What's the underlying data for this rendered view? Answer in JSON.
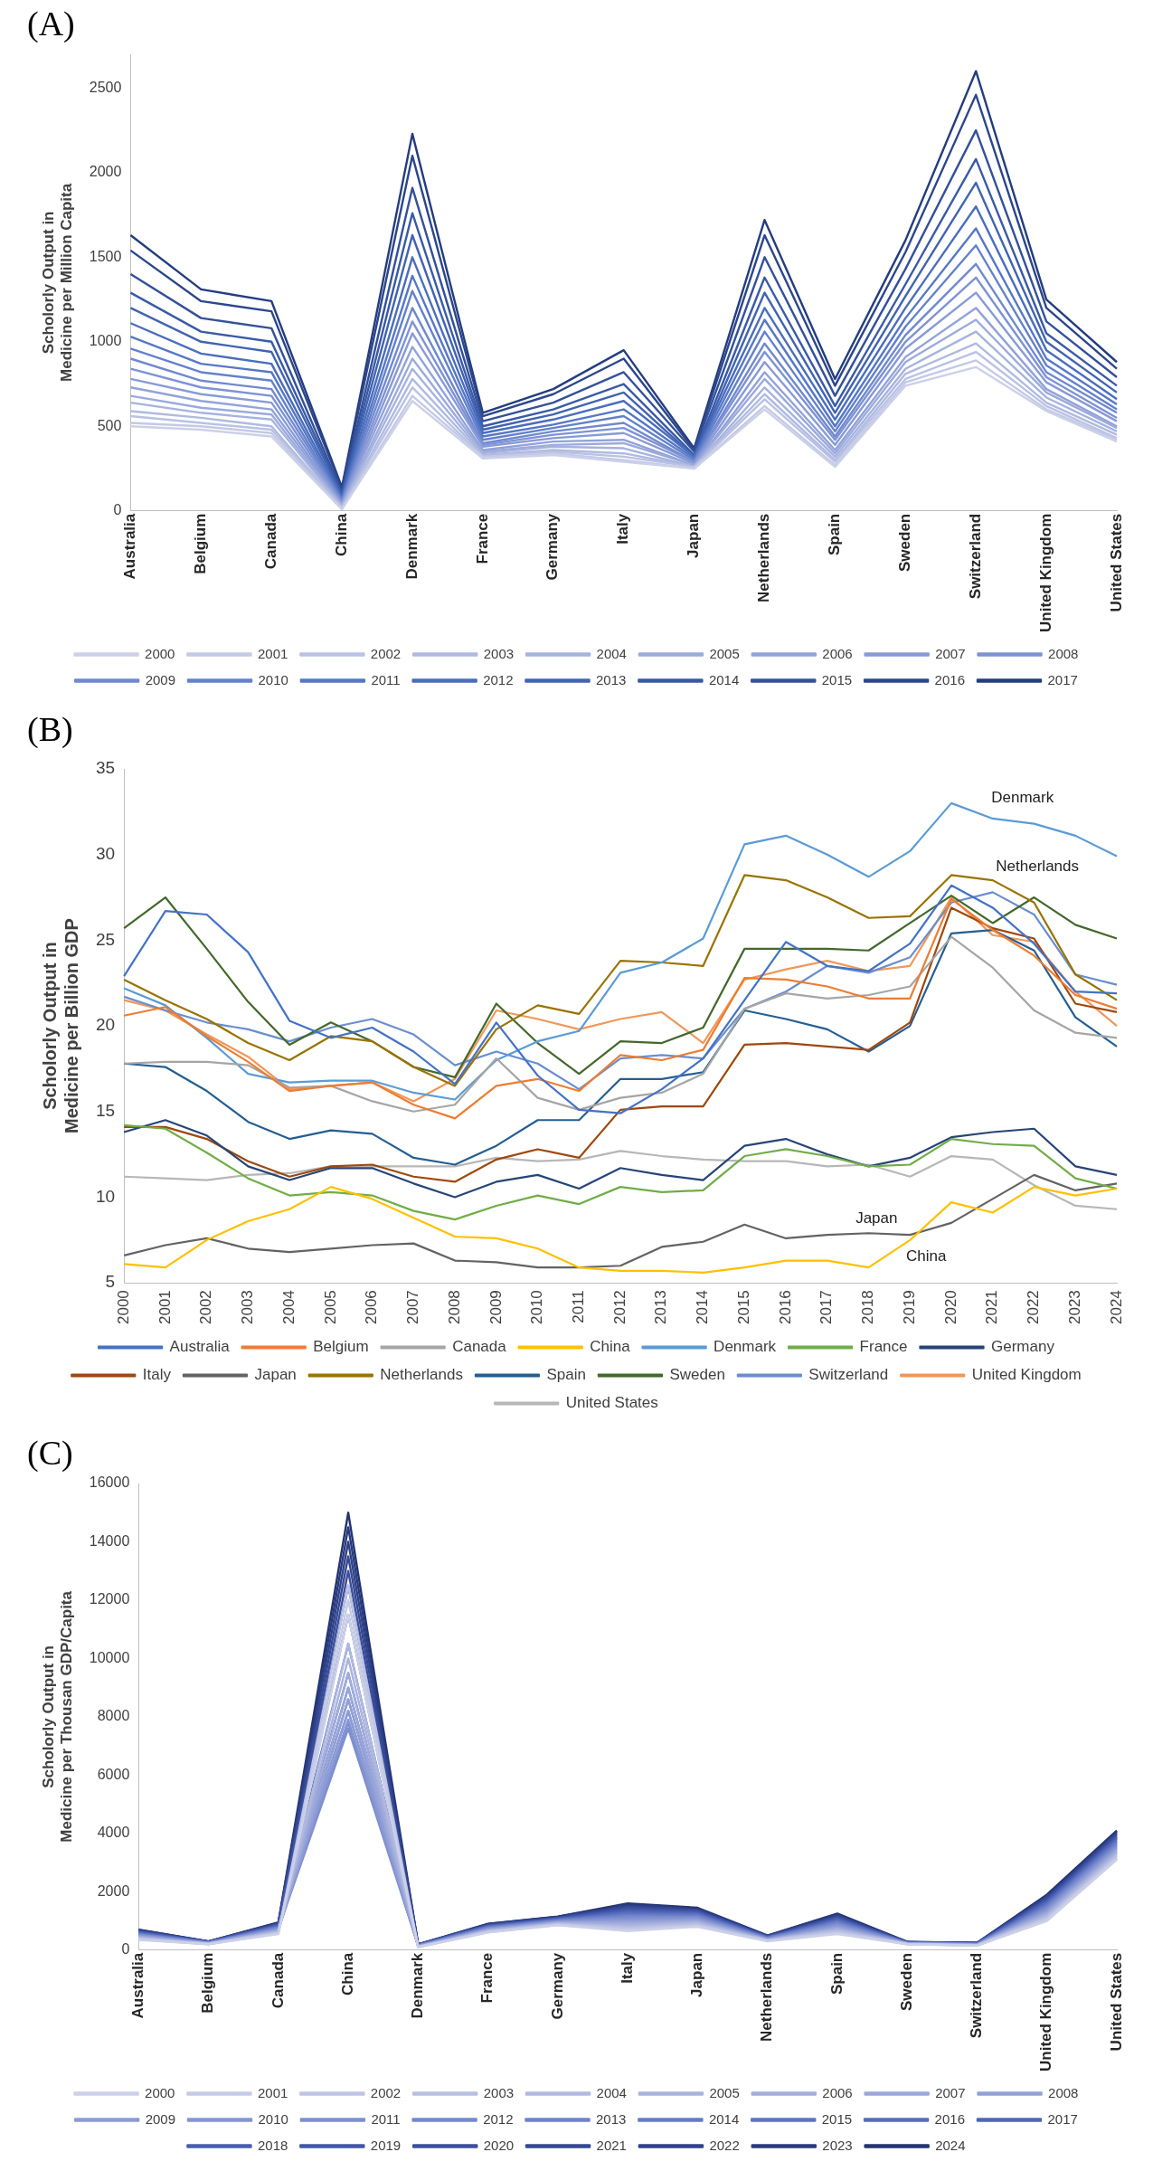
{
  "chart_data": [
    {
      "type": "line",
      "title": "(A)",
      "ylabel": "Scholorly Output in Medicine per Million Capita",
      "categories": [
        "Australia",
        "Belgium",
        "Canada",
        "China",
        "Denmark",
        "France",
        "Germany",
        "Italy",
        "Japan",
        "Netherlands",
        "Spain",
        "Sweden",
        "Switzerland",
        "United Kingdom",
        "United States"
      ],
      "ylim": [
        0,
        2700
      ],
      "yticks": [
        0,
        500,
        1000,
        1500,
        2000,
        2500
      ],
      "grid": false,
      "legend": "bottom",
      "marker": "none",
      "series": [
        {
          "name": "2000",
          "color": "#ccd0e8",
          "values": [
            500,
            480,
            440,
            10,
            650,
            310,
            330,
            290,
            250,
            600,
            260,
            740,
            850,
            590,
            410
          ]
        },
        {
          "name": "2001",
          "color": "#c3c9e6",
          "values": [
            520,
            500,
            460,
            10,
            680,
            320,
            340,
            300,
            250,
            620,
            270,
            760,
            890,
            600,
            420
          ]
        },
        {
          "name": "2002",
          "color": "#b9c2e4",
          "values": [
            560,
            520,
            480,
            20,
            730,
            320,
            350,
            320,
            260,
            660,
            290,
            780,
            940,
            620,
            430
          ]
        },
        {
          "name": "2003",
          "color": "#afbae2",
          "values": [
            590,
            550,
            500,
            20,
            780,
            330,
            360,
            340,
            260,
            690,
            300,
            810,
            990,
            640,
            450
          ]
        },
        {
          "name": "2004",
          "color": "#a6b3df",
          "values": [
            640,
            580,
            540,
            30,
            840,
            340,
            380,
            370,
            260,
            730,
            320,
            840,
            1060,
            670,
            470
          ]
        },
        {
          "name": "2005",
          "color": "#9caadc",
          "values": [
            680,
            610,
            570,
            30,
            900,
            350,
            390,
            400,
            270,
            780,
            340,
            880,
            1130,
            700,
            490
          ]
        },
        {
          "name": "2006",
          "color": "#92a2da",
          "values": [
            730,
            650,
            600,
            40,
            970,
            360,
            410,
            420,
            270,
            820,
            360,
            910,
            1200,
            720,
            500
          ]
        },
        {
          "name": "2007",
          "color": "#889ad7",
          "values": [
            780,
            690,
            640,
            40,
            1050,
            380,
            430,
            460,
            280,
            880,
            390,
            960,
            1290,
            760,
            530
          ]
        },
        {
          "name": "2008",
          "color": "#7e92d4",
          "values": [
            840,
            730,
            680,
            50,
            1120,
            390,
            450,
            490,
            290,
            940,
            420,
            1000,
            1380,
            790,
            550
          ]
        },
        {
          "name": "2009",
          "color": "#7089cf",
          "values": [
            900,
            770,
            720,
            60,
            1200,
            400,
            470,
            520,
            290,
            990,
            440,
            1040,
            1460,
            820,
            580
          ]
        },
        {
          "name": "2010",
          "color": "#6381cb",
          "values": [
            960,
            820,
            770,
            60,
            1300,
            420,
            490,
            560,
            300,
            1060,
            470,
            1090,
            1570,
            860,
            600
          ]
        },
        {
          "name": "2011",
          "color": "#5577c5",
          "values": [
            1030,
            870,
            820,
            70,
            1390,
            440,
            510,
            600,
            310,
            1130,
            500,
            1140,
            1670,
            900,
            630
          ]
        },
        {
          "name": "2012",
          "color": "#4a6dbd",
          "values": [
            1110,
            930,
            870,
            80,
            1500,
            460,
            540,
            650,
            320,
            1200,
            540,
            1200,
            1800,
            950,
            660
          ]
        },
        {
          "name": "2013",
          "color": "#4163b2",
          "values": [
            1200,
            1000,
            940,
            90,
            1630,
            480,
            570,
            700,
            320,
            1290,
            580,
            1270,
            1940,
            1000,
            700
          ]
        },
        {
          "name": "2014",
          "color": "#3a5aa6",
          "values": [
            1290,
            1060,
            1000,
            100,
            1760,
            500,
            600,
            750,
            330,
            1380,
            620,
            1340,
            2080,
            1050,
            740
          ]
        },
        {
          "name": "2015",
          "color": "#33509a",
          "values": [
            1400,
            1140,
            1080,
            110,
            1910,
            530,
            640,
            820,
            350,
            1500,
            680,
            1430,
            2250,
            1120,
            790
          ]
        },
        {
          "name": "2016",
          "color": "#2c468c",
          "values": [
            1540,
            1240,
            1180,
            130,
            2100,
            560,
            690,
            900,
            360,
            1630,
            740,
            1530,
            2460,
            1200,
            840
          ]
        },
        {
          "name": "2017",
          "color": "#243d7e",
          "values": [
            1630,
            1310,
            1240,
            140,
            2230,
            580,
            720,
            950,
            370,
            1720,
            780,
            1600,
            2600,
            1250,
            880
          ]
        }
      ]
    },
    {
      "type": "line",
      "title": "(B)",
      "ylabel": "Scholorly Output in Medicine per Billion GDP",
      "categories": [
        "2000",
        "2001",
        "2002",
        "2003",
        "2004",
        "2005",
        "2006",
        "2007",
        "2008",
        "2009",
        "2010",
        "2011",
        "2012",
        "2013",
        "2014",
        "2015",
        "2016",
        "2017",
        "2018",
        "2019",
        "2020",
        "2021",
        "2022",
        "2023",
        "2024"
      ],
      "ylim": [
        5,
        35
      ],
      "yticks": [
        5,
        10,
        15,
        20,
        25,
        30,
        35
      ],
      "grid": false,
      "legend": "bottom",
      "marker": "none",
      "annotations": [
        "Denmark",
        "Netherlands",
        "Japan",
        "China"
      ],
      "series": [
        {
          "name": "Australia",
          "color": "#4472c4",
          "values": [
            22.9,
            26.7,
            26.5,
            24.3,
            20.3,
            19.3,
            19.9,
            18.5,
            16.6,
            20.2,
            17.1,
            15.1,
            14.9,
            16.3,
            18.1,
            21.5,
            24.9,
            23.5,
            23.2,
            24.8,
            28.2,
            26.9,
            24.8,
            22.0,
            21.9
          ]
        },
        {
          "name": "Belgium",
          "color": "#ed7d31",
          "values": [
            20.6,
            21.1,
            19.4,
            17.9,
            16.2,
            16.5,
            16.7,
            15.4,
            14.6,
            16.5,
            16.9,
            16.2,
            18.3,
            18.0,
            18.6,
            22.8,
            22.7,
            22.3,
            21.6,
            21.6,
            27.4,
            25.6,
            24.1,
            21.8,
            21.0
          ]
        },
        {
          "name": "Canada",
          "color": "#a5a5a5",
          "values": [
            17.8,
            17.9,
            17.9,
            17.7,
            16.4,
            16.5,
            15.6,
            15.0,
            15.4,
            18.1,
            15.8,
            15.1,
            15.8,
            16.1,
            17.2,
            21.0,
            21.9,
            21.6,
            21.8,
            22.3,
            25.2,
            23.4,
            20.9,
            19.6,
            19.3
          ]
        },
        {
          "name": "China",
          "color": "#ffc000",
          "values": [
            6.1,
            5.9,
            7.5,
            8.6,
            9.3,
            10.6,
            9.9,
            8.8,
            7.7,
            7.6,
            7.0,
            5.9,
            5.7,
            5.7,
            5.6,
            5.9,
            6.3,
            6.3,
            5.9,
            7.5,
            9.7,
            9.1,
            10.6,
            10.1,
            10.5
          ]
        },
        {
          "name": "Denmark",
          "color": "#5b9bd5",
          "values": [
            22.2,
            21.2,
            19.3,
            17.2,
            16.7,
            16.8,
            16.8,
            16.1,
            15.7,
            18.0,
            19.1,
            19.7,
            23.1,
            23.7,
            25.1,
            30.6,
            31.1,
            30.0,
            28.7,
            30.2,
            33.0,
            32.1,
            31.8,
            31.1,
            29.9
          ]
        },
        {
          "name": "France",
          "color": "#70ad47",
          "values": [
            14.2,
            14.0,
            12.6,
            11.1,
            10.1,
            10.3,
            10.1,
            9.2,
            8.7,
            9.5,
            10.1,
            9.6,
            10.6,
            10.3,
            10.4,
            12.4,
            12.8,
            12.4,
            11.8,
            11.9,
            13.4,
            13.1,
            13.0,
            11.1,
            10.5
          ]
        },
        {
          "name": "Germany",
          "color": "#264478",
          "values": [
            13.8,
            14.5,
            13.6,
            11.8,
            11.0,
            11.7,
            11.7,
            10.8,
            10.0,
            10.9,
            11.3,
            10.5,
            11.7,
            11.3,
            11.0,
            13.0,
            13.4,
            12.5,
            11.8,
            12.3,
            13.5,
            13.8,
            14.0,
            11.8,
            11.3
          ]
        },
        {
          "name": "Italy",
          "color": "#9e480e",
          "values": [
            14.1,
            14.1,
            13.4,
            12.1,
            11.2,
            11.8,
            11.9,
            11.2,
            10.9,
            12.2,
            12.8,
            12.3,
            15.1,
            15.3,
            15.3,
            18.9,
            19.0,
            18.8,
            18.6,
            20.2,
            26.9,
            25.7,
            25.1,
            21.3,
            20.8
          ]
        },
        {
          "name": "Japan",
          "color": "#636363",
          "values": [
            6.6,
            7.2,
            7.6,
            7.0,
            6.8,
            7.0,
            7.2,
            7.3,
            6.3,
            6.2,
            5.9,
            5.9,
            6.0,
            7.1,
            7.4,
            8.4,
            7.6,
            7.8,
            7.9,
            7.8,
            8.5,
            9.9,
            11.3,
            10.4,
            10.8
          ]
        },
        {
          "name": "Netherlands",
          "color": "#997300",
          "values": [
            22.7,
            21.5,
            20.4,
            19.0,
            18.0,
            19.4,
            19.1,
            17.6,
            16.5,
            19.8,
            21.2,
            20.7,
            23.8,
            23.7,
            23.5,
            28.8,
            28.5,
            27.5,
            26.3,
            26.4,
            28.8,
            28.5,
            27.2,
            23.0,
            21.5
          ]
        },
        {
          "name": "Spain",
          "color": "#255e91",
          "values": [
            17.8,
            17.6,
            16.2,
            14.4,
            13.4,
            13.9,
            13.7,
            12.3,
            11.9,
            13.0,
            14.5,
            14.5,
            16.9,
            16.9,
            17.3,
            20.9,
            20.4,
            19.8,
            18.5,
            20.0,
            25.4,
            25.6,
            24.4,
            20.5,
            18.8
          ]
        },
        {
          "name": "Sweden",
          "color": "#43682b",
          "values": [
            25.7,
            27.5,
            24.5,
            21.4,
            18.9,
            20.2,
            19.1,
            17.6,
            17.0,
            21.3,
            19.0,
            17.2,
            19.1,
            19.0,
            19.9,
            24.5,
            24.5,
            24.5,
            24.4,
            26.0,
            27.6,
            26.0,
            27.5,
            25.9,
            25.1
          ]
        },
        {
          "name": "Switzerland",
          "color": "#698ed0",
          "values": [
            21.7,
            20.9,
            20.2,
            19.8,
            19.1,
            19.9,
            20.4,
            19.5,
            17.7,
            18.5,
            17.8,
            16.3,
            18.1,
            18.3,
            18.1,
            21.0,
            22.0,
            23.5,
            23.1,
            24.0,
            27.2,
            27.8,
            26.5,
            23.0,
            22.4
          ]
        },
        {
          "name": "United Kingdom",
          "color": "#f1975a",
          "values": [
            21.5,
            20.9,
            19.5,
            18.2,
            16.3,
            16.5,
            16.7,
            15.6,
            16.9,
            20.9,
            20.4,
            19.8,
            20.4,
            20.8,
            19.0,
            22.7,
            23.3,
            23.8,
            23.2,
            23.5,
            27.5,
            25.3,
            24.9,
            22.0,
            20.0
          ]
        },
        {
          "name": "United States",
          "color": "#b7b7b7",
          "values": [
            11.2,
            11.1,
            11.0,
            11.3,
            11.4,
            11.8,
            11.8,
            11.8,
            11.8,
            12.3,
            12.1,
            12.2,
            12.7,
            12.4,
            12.2,
            12.1,
            12.1,
            11.8,
            11.9,
            11.2,
            12.4,
            12.2,
            10.7,
            9.5,
            9.3
          ]
        }
      ]
    },
    {
      "type": "line",
      "title": "(C)",
      "ylabel": "Scholorly Output in Medicine per Thousan GDP/Capita",
      "categories": [
        "Australia",
        "Belgium",
        "Canada",
        "China",
        "Denmark",
        "France",
        "Germany",
        "Italy",
        "Japan",
        "Netherlands",
        "Spain",
        "Sweden",
        "Switzerland",
        "United Kingdom",
        "United States"
      ],
      "ylim": [
        0,
        16000
      ],
      "yticks": [
        0,
        2000,
        4000,
        6000,
        8000,
        10000,
        12000,
        14000,
        16000
      ],
      "grid": false,
      "legend": "bottom",
      "marker": "none",
      "series": [
        {
          "name": "2000",
          "color": "#ccd0e8",
          "values": [
            350,
            200,
            550,
            11500,
            100,
            600,
            850,
            650,
            800,
            300,
            550,
            200,
            150,
            1000,
            3100
          ]
        },
        {
          "name": "2001",
          "color": "#c5cae6",
          "values": [
            360,
            200,
            570,
            12000,
            100,
            610,
            860,
            690,
            830,
            310,
            580,
            200,
            150,
            1040,
            3140
          ]
        },
        {
          "name": "2002",
          "color": "#bec5e4",
          "values": [
            380,
            210,
            580,
            12500,
            110,
            630,
            880,
            730,
            850,
            320,
            610,
            210,
            160,
            1080,
            3180
          ]
        },
        {
          "name": "2003",
          "color": "#b7bfe2",
          "values": [
            390,
            210,
            600,
            11500,
            110,
            640,
            890,
            770,
            880,
            330,
            640,
            210,
            160,
            1110,
            3230
          ]
        },
        {
          "name": "2004",
          "color": "#b0b9e0",
          "values": [
            410,
            220,
            620,
            10500,
            120,
            650,
            900,
            810,
            910,
            330,
            670,
            210,
            170,
            1150,
            3270
          ]
        },
        {
          "name": "2005",
          "color": "#a9b3de",
          "values": [
            420,
            220,
            630,
            10000,
            120,
            660,
            910,
            850,
            940,
            340,
            700,
            220,
            170,
            1190,
            3310
          ]
        },
        {
          "name": "2006",
          "color": "#a2addc",
          "values": [
            440,
            220,
            650,
            9500,
            120,
            680,
            930,
            890,
            960,
            350,
            720,
            220,
            170,
            1230,
            3350
          ]
        },
        {
          "name": "2007",
          "color": "#9ba7da",
          "values": [
            450,
            230,
            670,
            9000,
            130,
            690,
            940,
            930,
            990,
            360,
            750,
            220,
            180,
            1260,
            3390
          ]
        },
        {
          "name": "2008",
          "color": "#93a1d7",
          "values": [
            470,
            230,
            680,
            8600,
            130,
            700,
            950,
            970,
            1020,
            370,
            780,
            230,
            180,
            1300,
            3430
          ]
        },
        {
          "name": "2009",
          "color": "#8c9bd5",
          "values": [
            480,
            240,
            700,
            8200,
            140,
            710,
            960,
            1010,
            1040,
            370,
            810,
            230,
            190,
            1340,
            3480
          ]
        },
        {
          "name": "2010",
          "color": "#8595d2",
          "values": [
            500,
            240,
            720,
            7900,
            140,
            730,
            980,
            1050,
            1070,
            380,
            840,
            230,
            190,
            1380,
            3520
          ]
        },
        {
          "name": "2011",
          "color": "#7e8fd0",
          "values": [
            510,
            250,
            730,
            7600,
            150,
            740,
            990,
            1090,
            1100,
            390,
            870,
            240,
            200,
            1410,
            3560
          ]
        },
        {
          "name": "2012",
          "color": "#7689cd",
          "values": [
            530,
            250,
            750,
            7800,
            150,
            750,
            1000,
            1130,
            1130,
            400,
            900,
            240,
            200,
            1450,
            3600
          ]
        },
        {
          "name": "2013",
          "color": "#6f82ca",
          "values": [
            540,
            250,
            770,
            8200,
            150,
            760,
            1010,
            1170,
            1150,
            410,
            930,
            240,
            200,
            1490,
            3640
          ]
        },
        {
          "name": "2014",
          "color": "#677bc6",
          "values": [
            550,
            260,
            780,
            8600,
            160,
            780,
            1030,
            1200,
            1180,
            420,
            960,
            250,
            210,
            1530,
            3680
          ]
        },
        {
          "name": "2015",
          "color": "#5f74c2",
          "values": [
            570,
            260,
            800,
            9000,
            160,
            790,
            1040,
            1240,
            1210,
            420,
            990,
            250,
            210,
            1560,
            3730
          ]
        },
        {
          "name": "2016",
          "color": "#576cbd",
          "values": [
            580,
            270,
            820,
            9500,
            170,
            800,
            1050,
            1280,
            1230,
            430,
            1020,
            250,
            220,
            1600,
            3770
          ]
        },
        {
          "name": "2017",
          "color": "#4f65b8",
          "values": [
            600,
            270,
            830,
            10500,
            170,
            810,
            1060,
            1320,
            1260,
            440,
            1050,
            260,
            220,
            1640,
            3810
          ]
        },
        {
          "name": "2018",
          "color": "#485db0",
          "values": [
            610,
            280,
            850,
            11500,
            180,
            830,
            1080,
            1360,
            1290,
            450,
            1080,
            260,
            230,
            1680,
            3850
          ]
        },
        {
          "name": "2019",
          "color": "#4156a7",
          "values": [
            630,
            280,
            870,
            12500,
            180,
            840,
            1090,
            1400,
            1310,
            460,
            1100,
            260,
            230,
            1710,
            3890
          ]
        },
        {
          "name": "2020",
          "color": "#3b4f9d",
          "values": [
            640,
            280,
            880,
            13000,
            180,
            850,
            1100,
            1440,
            1340,
            470,
            1130,
            270,
            230,
            1750,
            3930
          ]
        },
        {
          "name": "2021",
          "color": "#354893",
          "values": [
            660,
            290,
            900,
            13500,
            190,
            860,
            1110,
            1480,
            1370,
            470,
            1160,
            270,
            240,
            1790,
            3980
          ]
        },
        {
          "name": "2022",
          "color": "#2f4188",
          "values": [
            670,
            290,
            920,
            14000,
            190,
            880,
            1130,
            1520,
            1400,
            480,
            1190,
            270,
            240,
            1830,
            4020
          ]
        },
        {
          "name": "2023",
          "color": "#293a7d",
          "values": [
            690,
            300,
            930,
            14500,
            200,
            890,
            1140,
            1560,
            1420,
            490,
            1220,
            280,
            250,
            1860,
            4060
          ]
        },
        {
          "name": "2024",
          "color": "#233372",
          "values": [
            700,
            300,
            950,
            15000,
            200,
            900,
            1150,
            1600,
            1450,
            500,
            1250,
            280,
            250,
            1900,
            4100
          ]
        }
      ]
    }
  ]
}
